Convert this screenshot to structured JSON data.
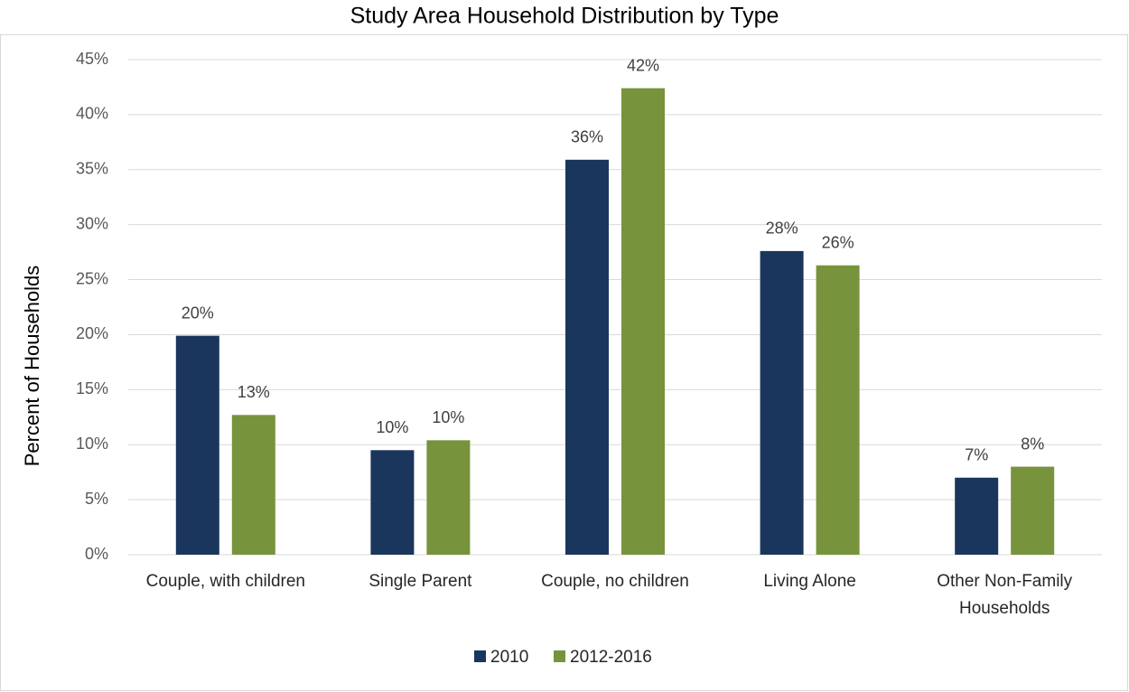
{
  "chart_data": {
    "type": "bar",
    "title": "Study Area Household Distribution by Type",
    "y_label": "Percent of Households",
    "categories": [
      "Couple, with children",
      "Single Parent",
      "Couple, no children",
      "Living Alone",
      "Other Non-Family Households"
    ],
    "series": [
      {
        "name": "2010",
        "color": "#1b365d",
        "values": [
          19.9,
          9.5,
          35.9,
          27.6,
          7.0
        ],
        "value_labels": [
          "20%",
          "10%",
          "36%",
          "28%",
          "7%"
        ]
      },
      {
        "name": "2012-2016",
        "color": "#77933c",
        "values": [
          12.7,
          10.4,
          42.4,
          26.3,
          8.0
        ],
        "value_labels": [
          "13%",
          "10%",
          "42%",
          "26%",
          "8%"
        ]
      }
    ],
    "ylim": [
      0,
      45
    ],
    "yticks": [
      {
        "value": 0,
        "label": "0%"
      },
      {
        "value": 5,
        "label": "5%"
      },
      {
        "value": 10,
        "label": "10%"
      },
      {
        "value": 15,
        "label": "15%"
      },
      {
        "value": 20,
        "label": "20%"
      },
      {
        "value": 25,
        "label": "25%"
      },
      {
        "value": 30,
        "label": "30%"
      },
      {
        "value": 35,
        "label": "35%"
      },
      {
        "value": 40,
        "label": "40%"
      },
      {
        "value": 45,
        "label": "45%"
      }
    ],
    "grid": true,
    "legend": "bottom"
  }
}
